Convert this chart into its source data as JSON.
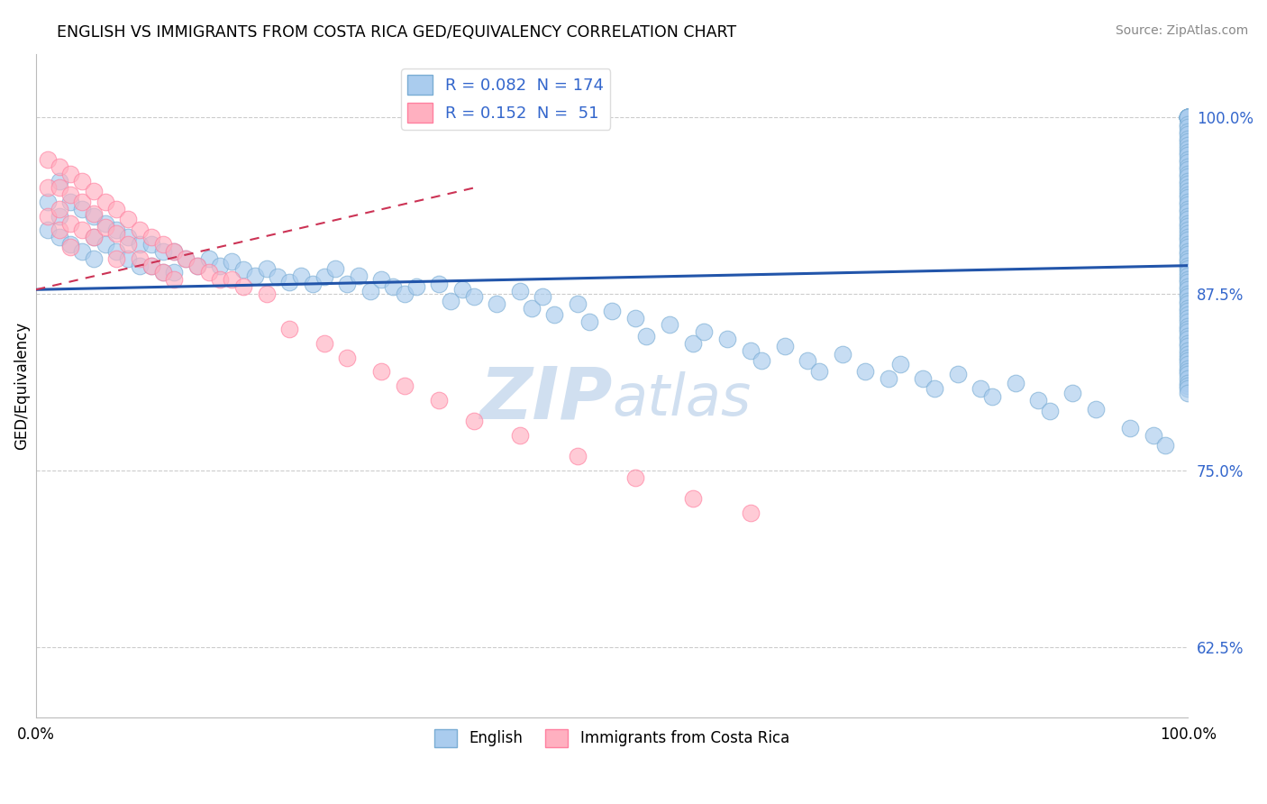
{
  "title": "ENGLISH VS IMMIGRANTS FROM COSTA RICA GED/EQUIVALENCY CORRELATION CHART",
  "source": "Source: ZipAtlas.com",
  "ylabel": "GED/Equivalency",
  "ytick_values": [
    0.625,
    0.75,
    0.875,
    1.0
  ],
  "xlim": [
    0.0,
    1.0
  ],
  "ylim": [
    0.575,
    1.045
  ],
  "blue_color": "#aaccee",
  "blue_edge": "#7aadd4",
  "pink_color": "#ffb0c0",
  "pink_edge": "#ff80a0",
  "blue_line_color": "#2255aa",
  "pink_line_color": "#cc3355",
  "background_color": "#ffffff",
  "english_R": 0.082,
  "english_N": 174,
  "immigrant_R": 0.152,
  "immigrant_N": 51,
  "watermark_color": "#d0dff0",
  "tick_color": "#3366cc",
  "english_x": [
    0.01,
    0.01,
    0.02,
    0.02,
    0.02,
    0.03,
    0.03,
    0.04,
    0.04,
    0.05,
    0.05,
    0.05,
    0.06,
    0.06,
    0.07,
    0.07,
    0.08,
    0.08,
    0.09,
    0.09,
    0.1,
    0.1,
    0.11,
    0.11,
    0.12,
    0.12,
    0.13,
    0.14,
    0.15,
    0.16,
    0.17,
    0.18,
    0.19,
    0.2,
    0.21,
    0.22,
    0.23,
    0.24,
    0.25,
    0.26,
    0.27,
    0.28,
    0.29,
    0.3,
    0.31,
    0.32,
    0.33,
    0.35,
    0.36,
    0.37,
    0.38,
    0.4,
    0.42,
    0.43,
    0.44,
    0.45,
    0.47,
    0.48,
    0.5,
    0.52,
    0.53,
    0.55,
    0.57,
    0.58,
    0.6,
    0.62,
    0.63,
    0.65,
    0.67,
    0.68,
    0.7,
    0.72,
    0.74,
    0.75,
    0.77,
    0.78,
    0.8,
    0.82,
    0.83,
    0.85,
    0.87,
    0.88,
    0.9,
    0.92,
    0.95,
    0.97,
    0.98,
    1.0,
    1.0,
    1.0,
    1.0,
    1.0,
    1.0,
    1.0,
    1.0,
    1.0,
    1.0,
    1.0,
    1.0,
    1.0,
    1.0,
    1.0,
    1.0,
    1.0,
    1.0,
    1.0,
    1.0,
    1.0,
    1.0,
    1.0,
    1.0,
    1.0,
    1.0,
    1.0,
    1.0,
    1.0,
    1.0,
    1.0,
    1.0,
    1.0,
    1.0,
    1.0,
    1.0,
    1.0,
    1.0,
    1.0,
    1.0,
    1.0,
    1.0,
    1.0,
    1.0,
    1.0,
    1.0,
    1.0,
    1.0,
    1.0,
    1.0,
    1.0,
    1.0,
    1.0,
    1.0,
    1.0,
    1.0,
    1.0,
    1.0,
    1.0,
    1.0,
    1.0,
    1.0,
    1.0,
    1.0,
    1.0,
    1.0,
    1.0,
    1.0,
    1.0,
    1.0,
    1.0,
    1.0,
    1.0,
    1.0,
    1.0,
    1.0,
    1.0,
    1.0,
    1.0,
    1.0,
    1.0,
    1.0,
    1.0,
    1.0,
    1.0,
    1.0,
    1.0
  ],
  "english_y": [
    0.94,
    0.92,
    0.955,
    0.93,
    0.915,
    0.94,
    0.91,
    0.935,
    0.905,
    0.93,
    0.915,
    0.9,
    0.925,
    0.91,
    0.92,
    0.905,
    0.915,
    0.9,
    0.91,
    0.895,
    0.91,
    0.895,
    0.905,
    0.89,
    0.905,
    0.89,
    0.9,
    0.895,
    0.9,
    0.895,
    0.898,
    0.892,
    0.888,
    0.893,
    0.887,
    0.883,
    0.888,
    0.882,
    0.887,
    0.893,
    0.882,
    0.888,
    0.877,
    0.885,
    0.88,
    0.875,
    0.88,
    0.882,
    0.87,
    0.878,
    0.873,
    0.868,
    0.877,
    0.865,
    0.873,
    0.86,
    0.868,
    0.855,
    0.863,
    0.858,
    0.845,
    0.853,
    0.84,
    0.848,
    0.843,
    0.835,
    0.828,
    0.838,
    0.828,
    0.82,
    0.832,
    0.82,
    0.815,
    0.825,
    0.815,
    0.808,
    0.818,
    0.808,
    0.802,
    0.812,
    0.8,
    0.792,
    0.805,
    0.793,
    0.78,
    0.775,
    0.768,
    1.0,
    1.0,
    1.0,
    1.0,
    1.0,
    1.0,
    1.0,
    1.0,
    1.0,
    1.0,
    0.995,
    0.993,
    0.99,
    0.988,
    0.985,
    0.983,
    0.98,
    0.978,
    0.975,
    0.973,
    0.97,
    0.968,
    0.965,
    0.963,
    0.96,
    0.958,
    0.955,
    0.953,
    0.95,
    0.948,
    0.945,
    0.943,
    0.94,
    0.938,
    0.935,
    0.933,
    0.93,
    0.928,
    0.925,
    0.923,
    0.92,
    0.918,
    0.915,
    0.913,
    0.91,
    0.908,
    0.905,
    0.903,
    0.9,
    0.898,
    0.895,
    0.893,
    0.89,
    0.888,
    0.885,
    0.883,
    0.88,
    0.878,
    0.875,
    0.873,
    0.87,
    0.868,
    0.865,
    0.863,
    0.86,
    0.858,
    0.855,
    0.852,
    0.85,
    0.848,
    0.845,
    0.843,
    0.84,
    0.838,
    0.835,
    0.832,
    0.83,
    0.828,
    0.825,
    0.822,
    0.82,
    0.818,
    0.815,
    0.812,
    0.81,
    0.808,
    0.805
  ],
  "immigrant_x": [
    0.01,
    0.01,
    0.01,
    0.02,
    0.02,
    0.02,
    0.02,
    0.03,
    0.03,
    0.03,
    0.03,
    0.04,
    0.04,
    0.04,
    0.05,
    0.05,
    0.05,
    0.06,
    0.06,
    0.07,
    0.07,
    0.07,
    0.08,
    0.08,
    0.09,
    0.09,
    0.1,
    0.1,
    0.11,
    0.11,
    0.12,
    0.12,
    0.13,
    0.14,
    0.15,
    0.16,
    0.17,
    0.18,
    0.2,
    0.22,
    0.25,
    0.27,
    0.3,
    0.32,
    0.35,
    0.38,
    0.42,
    0.47,
    0.52,
    0.57,
    0.62
  ],
  "immigrant_y": [
    0.97,
    0.95,
    0.93,
    0.965,
    0.95,
    0.935,
    0.92,
    0.96,
    0.945,
    0.925,
    0.908,
    0.955,
    0.94,
    0.92,
    0.948,
    0.932,
    0.915,
    0.94,
    0.922,
    0.935,
    0.918,
    0.9,
    0.928,
    0.91,
    0.92,
    0.9,
    0.915,
    0.895,
    0.91,
    0.89,
    0.905,
    0.885,
    0.9,
    0.895,
    0.89,
    0.885,
    0.885,
    0.88,
    0.875,
    0.85,
    0.84,
    0.83,
    0.82,
    0.81,
    0.8,
    0.785,
    0.775,
    0.76,
    0.745,
    0.73,
    0.72
  ]
}
